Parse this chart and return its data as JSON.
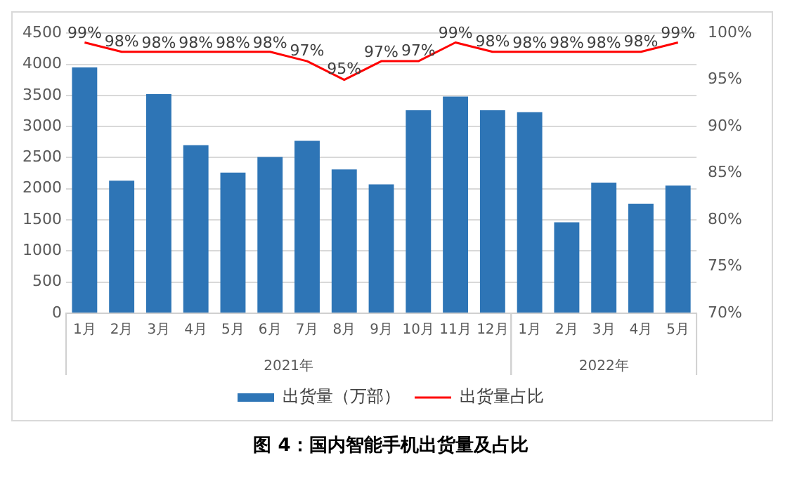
{
  "chart_data": {
    "type": "bar",
    "title": "图 4：国内智能手机出货量及占比",
    "categories": [
      "1月",
      "2月",
      "3月",
      "4月",
      "5月",
      "6月",
      "7月",
      "8月",
      "9月",
      "10月",
      "11月",
      "12月",
      "1月",
      "2月",
      "3月",
      "4月",
      "5月"
    ],
    "series": [
      {
        "name": "出货量（万部）",
        "color": "#2e75b6",
        "values": [
          3950,
          2130,
          3520,
          2700,
          2260,
          2510,
          2770,
          2310,
          2070,
          3260,
          3480,
          3260,
          3230,
          1460,
          2100,
          1760,
          2050
        ]
      },
      {
        "name": "出货量占比",
        "type": "line",
        "axis": "y2",
        "color": "#ff0000",
        "values": [
          99,
          98,
          98,
          98,
          98,
          98,
          97,
          95,
          97,
          97,
          99,
          98,
          98,
          98,
          98,
          98,
          99
        ],
        "value_labels": [
          "99%",
          "98%",
          "98%",
          "98%",
          "98%",
          "98%",
          "97%",
          "95%",
          "97%",
          "97%",
          "99%",
          "98%",
          "98%",
          "98%",
          "98%",
          "98%",
          "99%"
        ]
      }
    ],
    "ylim": [
      0,
      4500
    ],
    "yticks": [
      0,
      500,
      1000,
      1500,
      2000,
      2500,
      3000,
      3500,
      4000,
      4500
    ],
    "y2lim": [
      70,
      100
    ],
    "y2ticks": [
      {
        "value": 70,
        "label": "70%"
      },
      {
        "value": 75,
        "label": "75%"
      },
      {
        "value": 80,
        "label": "80%"
      },
      {
        "value": 85,
        "label": "85%"
      },
      {
        "value": 90,
        "label": "90%"
      },
      {
        "value": 95,
        "label": "95%"
      },
      {
        "value": 100,
        "label": "100%"
      }
    ],
    "annotations": [
      "2021年",
      "2022年"
    ],
    "grid": "y",
    "legend": "bottom",
    "marker": "none"
  }
}
